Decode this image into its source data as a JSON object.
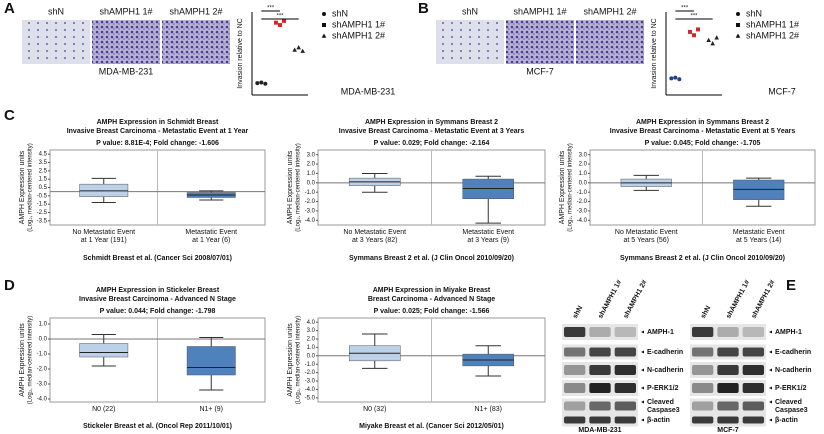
{
  "A": {
    "label": "A",
    "images": [
      "shN",
      "shAMPH1 1#",
      "shAMPH1 2#"
    ],
    "image_caption": "MDA-MB-231",
    "chart": {
      "type": "scatter",
      "ylabel": "Invasion relative to NC",
      "ylim": [
        0,
        7
      ],
      "series": [
        {
          "name": "shN",
          "color": "#222222",
          "values": [
            1.0,
            1.05,
            0.95
          ]
        },
        {
          "name": "shAMPH1 1#",
          "color": "#d62728",
          "values": [
            6.1,
            5.9,
            6.25
          ]
        },
        {
          "name": "shAMPH1 2#",
          "color": "#222222",
          "values": [
            3.8,
            4.0,
            3.7
          ]
        }
      ],
      "significance": [
        "***",
        "***"
      ],
      "caption": "MDA-MB-231"
    }
  },
  "B": {
    "label": "B",
    "images": [
      "shN",
      "shAMPH1 1#",
      "shAMPH1 2#"
    ],
    "image_caption": "MCF-7",
    "chart": {
      "type": "scatter",
      "ylabel": "Invasion relative to NC",
      "ylim": [
        0,
        5
      ],
      "series": [
        {
          "name": "shN",
          "color": "#1f3f8f",
          "values": [
            1.0,
            1.05,
            0.95
          ]
        },
        {
          "name": "shAMPH1 1#",
          "color": "#d62728",
          "values": [
            3.8,
            3.6,
            3.95
          ]
        },
        {
          "name": "shAMPH1 2#",
          "color": "#222222",
          "values": [
            3.3,
            3.1,
            3.45
          ]
        }
      ],
      "significance": [
        "***",
        "***"
      ],
      "caption": "MCF-7"
    }
  },
  "C": {
    "label": "C",
    "charts": [
      {
        "type": "box",
        "title": [
          "AMPH Expression in Schmidt Breast",
          "Invasive Breast Carcinoma - Metastatic Event at 1 Year",
          "P value: 8.81E-4;  Fold change: -1.606"
        ],
        "ylabel": [
          "AMPH Expression units",
          "(Log₂, median-centered intensity)"
        ],
        "ylim": [
          -4,
          5
        ],
        "yticks": [
          4.5,
          3.5,
          2.5,
          1.5,
          0.5,
          -0.5,
          -1.5,
          -2.5,
          -3.5
        ],
        "categories": [
          [
            "No Metastatic Event",
            "at 1 Year (191)"
          ],
          [
            "Metastatic Event",
            "at 1 Year (6)"
          ]
        ],
        "series": [
          {
            "color": "#bcd0e8",
            "values": [
              -1.3,
              -0.6,
              0.1,
              0.9,
              1.6
            ]
          },
          {
            "color": "#4f81bd",
            "values": [
              -1.0,
              -0.7,
              -0.4,
              -0.1,
              0.1
            ]
          }
        ],
        "citation": "Schmidt Breast et al. (Cancer Sci 2008/07/01)"
      },
      {
        "type": "box",
        "title": [
          "AMPH Expression in Symmans Breast 2",
          "Invasive Breast Carcinoma - Metastatic Event at 3 Years",
          "P value: 0.029;  Fold change: -2.164"
        ],
        "ylabel": [
          "AMPH Expression units",
          "(Log₂, median-centered intensity)"
        ],
        "ylim": [
          -4.5,
          3.5
        ],
        "yticks": [
          {
            "value": 3,
            "label": "3.0"
          },
          {
            "value": 2,
            "label": "2.0"
          },
          {
            "value": 1,
            "label": "1.0"
          },
          {
            "value": 0,
            "label": "0.0"
          },
          {
            "value": -1,
            "label": "-1.0"
          },
          {
            "value": -2,
            "label": "-2.0"
          },
          {
            "value": -3,
            "label": "-3.0"
          },
          {
            "value": -4,
            "label": "-4.0"
          }
        ],
        "categories": [
          [
            "No Metastatic Event",
            "at 3 Years (82)"
          ],
          [
            "Metastatic Event",
            "at 3 Years (9)"
          ]
        ],
        "series": [
          {
            "color": "#bcd0e8",
            "values": [
              -1.0,
              -0.3,
              0.1,
              0.5,
              1.0
            ]
          },
          {
            "color": "#4f81bd",
            "values": [
              -4.3,
              -1.7,
              -0.6,
              0.4,
              0.7
            ]
          }
        ],
        "citation": "Symmans Breast 2 et al. (J Clin Oncol 2010/09/20)"
      },
      {
        "type": "box",
        "title": [
          "AMPH Expression in Symmans Breast 2",
          "Invasive Breast Carcinoma - Metastatic Event at 5 Years",
          "P value: 0.045;  Fold change: -1.705"
        ],
        "ylabel": [
          "AMPH Expression units",
          "(Log₂, median-centered intensity)"
        ],
        "ylim": [
          -4.5,
          3.5
        ],
        "yticks": [
          {
            "value": 3,
            "label": "3.0"
          },
          {
            "value": 2,
            "label": "2.0"
          },
          {
            "value": 1,
            "label": "1.0"
          },
          {
            "value": 0,
            "label": "0.0"
          },
          {
            "value": -1,
            "label": "-1.0"
          },
          {
            "value": -2,
            "label": "-2.0"
          },
          {
            "value": -3,
            "label": "-3.0"
          },
          {
            "value": -4,
            "label": "-4.0"
          }
        ],
        "categories": [
          [
            "No Metastatic Event",
            "at 5 Years (56)"
          ],
          [
            "Metastatic Event",
            "at 5 Years (14)"
          ]
        ],
        "series": [
          {
            "color": "#bcd0e8",
            "values": [
              -0.8,
              -0.4,
              0.0,
              0.4,
              0.8
            ]
          },
          {
            "color": "#4f81bd",
            "values": [
              -2.5,
              -1.8,
              -0.7,
              0.3,
              0.5
            ]
          }
        ],
        "citation": "Symmans Breast 2 et al. (J Clin Oncol 2010/09/20)"
      }
    ]
  },
  "D": {
    "label": "D",
    "charts": [
      {
        "type": "box",
        "title": [
          "AMPH Expression in Stickeler Breast",
          "Invasive Breast Carcinoma - Advanced N Stage",
          "P value: 0.044;  Fold change: -1.798"
        ],
        "ylabel": [
          "AMPH Expression units",
          "(Log₂, median-centered intensity)"
        ],
        "ylim": [
          -4.2,
          1.4
        ],
        "yticks": [
          {
            "value": 1,
            "label": "1.0"
          },
          {
            "value": 0,
            "label": "0.0"
          },
          {
            "value": -1,
            "label": "-1.0"
          },
          {
            "value": -2,
            "label": "-2.0"
          },
          {
            "value": -3,
            "label": "-3.0"
          },
          {
            "value": -4,
            "label": "-4.0"
          }
        ],
        "categories": [
          [
            "N0 (22)"
          ],
          [
            "N1+ (9)"
          ]
        ],
        "series": [
          {
            "color": "#bcd0e8",
            "values": [
              -1.8,
              -1.2,
              -0.9,
              -0.3,
              0.3
            ]
          },
          {
            "color": "#4f81bd",
            "values": [
              -3.4,
              -2.4,
              -1.9,
              -0.5,
              0.1
            ]
          }
        ],
        "citation": "Stickeler Breast et al. (Oncol Rep 2011/10/01)"
      },
      {
        "type": "box",
        "title": [
          "AMPH Expression in Miyake Breast",
          "Breast Carcinoma - Advanced N Stage",
          "P value: 0.025;  Fold change: -1.566"
        ],
        "ylabel": [
          "AMPH Expression units",
          "(Log₂, median-centered intensity)"
        ],
        "ylim": [
          -5.5,
          4.5
        ],
        "yticks": [
          {
            "value": 4,
            "label": "4.0"
          },
          {
            "value": 3,
            "label": "3.0"
          },
          {
            "value": 2,
            "label": "2.0"
          },
          {
            "value": 1,
            "label": "1.0"
          },
          {
            "value": 0,
            "label": "0.0"
          },
          {
            "value": -1,
            "label": "-1.0"
          },
          {
            "value": -2,
            "label": "-2.0"
          },
          {
            "value": -3,
            "label": "-3.0"
          },
          {
            "value": -4,
            "label": "-4.0"
          },
          {
            "value": -5,
            "label": "-5.0"
          }
        ],
        "categories": [
          [
            "N0 (32)"
          ],
          [
            "N1+ (83)"
          ]
        ],
        "series": [
          {
            "color": "#bcd0e8",
            "values": [
              -1.5,
              -0.6,
              0.3,
              1.2,
              2.6
            ]
          },
          {
            "color": "#4f81bd",
            "values": [
              -2.4,
              -1.2,
              -0.5,
              0.2,
              1.2
            ]
          }
        ],
        "citation": "Miyake Breast et al. (Cancer Sci 2012/05/01)"
      }
    ]
  },
  "E": {
    "label": "E",
    "columns": [
      "shN",
      "shAMPH1 1#",
      "shAMPH1 2#"
    ],
    "rows": [
      [
        "AMPH-1"
      ],
      [
        "E-cadherin"
      ],
      [
        "N-cadherin"
      ],
      [
        "P-ERK1/2"
      ],
      [
        "Cleaved",
        "Caspase3"
      ],
      [
        "β-actin"
      ]
    ],
    "cell_lines": [
      "MDA-MB-231",
      "MCF-7"
    ]
  }
}
